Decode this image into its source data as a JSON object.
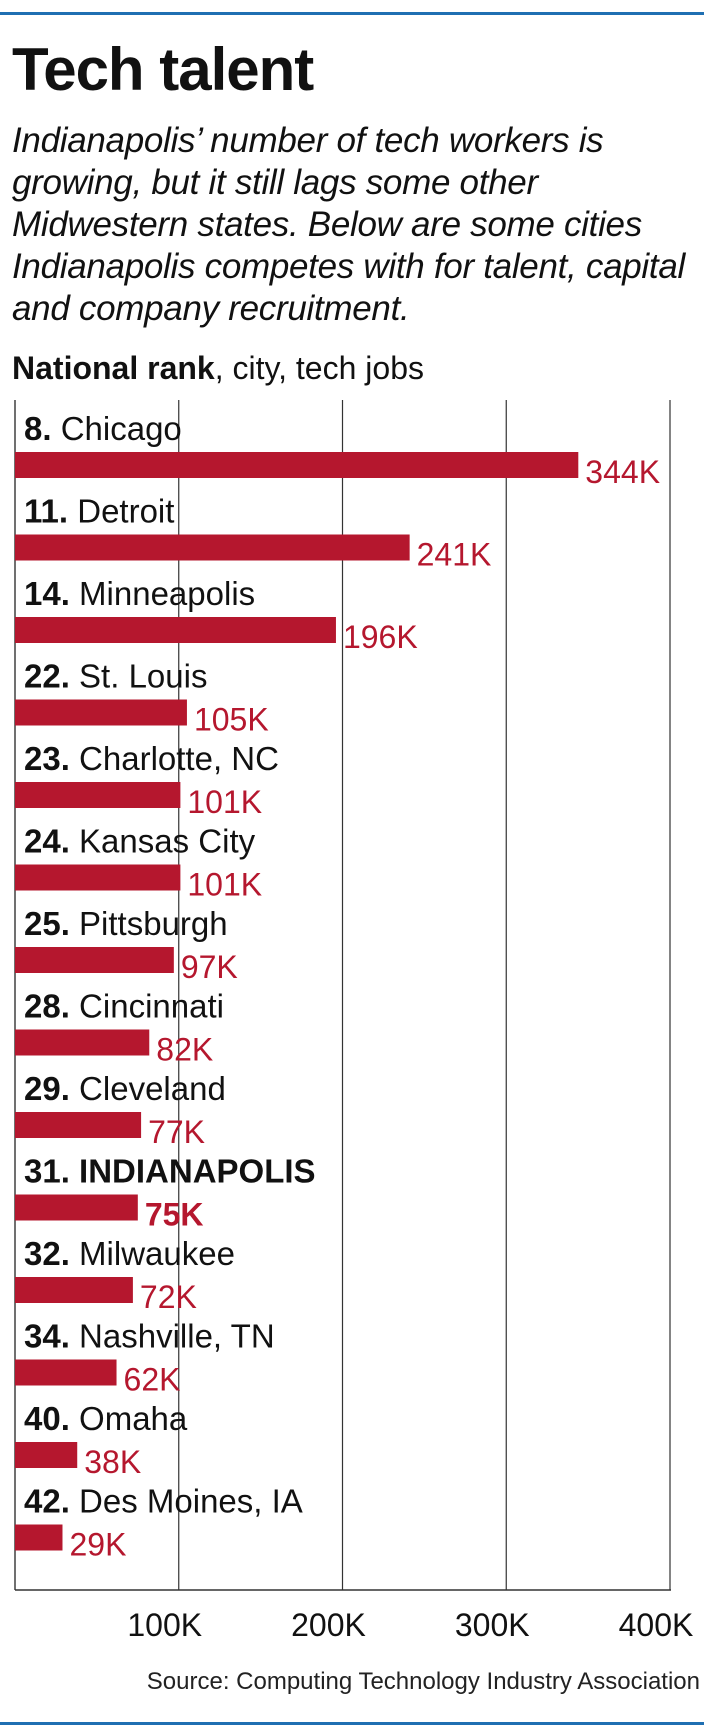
{
  "header": {
    "title": "Tech talent",
    "subtitle": "Indianapolis’ number of tech workers is growing, but it still lags some other Midwestern states. Below are some cities Indianapolis competes with for talent, capital and company recruitment.",
    "axis_title_bold": "National rank",
    "axis_title_rest": ", city, tech jobs"
  },
  "source": "Source: Computing Technology Industry Association",
  "colors": {
    "bar": "#b5172e",
    "rule": "#1f6fb2",
    "grid": "#333333"
  },
  "chart_data": {
    "type": "bar",
    "orientation": "horizontal",
    "xlim": [
      0,
      400000
    ],
    "ticks": [
      {
        "value": 100000,
        "label": "100K"
      },
      {
        "value": 200000,
        "label": "200K"
      },
      {
        "value": 300000,
        "label": "300K"
      },
      {
        "value": 400000,
        "label": "400K"
      }
    ],
    "grid": true,
    "rows": [
      {
        "rank": "8.",
        "city": "Chicago",
        "value": 344000,
        "label": "344K",
        "highlight": false
      },
      {
        "rank": "11.",
        "city": "Detroit",
        "value": 241000,
        "label": "241K",
        "highlight": false
      },
      {
        "rank": "14.",
        "city": "Minneapolis",
        "value": 196000,
        "label": "196K",
        "highlight": false
      },
      {
        "rank": "22.",
        "city": "St. Louis",
        "value": 105000,
        "label": "105K",
        "highlight": false
      },
      {
        "rank": "23.",
        "city": "Charlotte, NC",
        "value": 101000,
        "label": "101K",
        "highlight": false
      },
      {
        "rank": "24.",
        "city": "Kansas City",
        "value": 101000,
        "label": "101K",
        "highlight": false
      },
      {
        "rank": "25.",
        "city": "Pittsburgh",
        "value": 97000,
        "label": "97K",
        "highlight": false
      },
      {
        "rank": "28.",
        "city": "Cincinnati",
        "value": 82000,
        "label": "82K",
        "highlight": false
      },
      {
        "rank": "29.",
        "city": "Cleveland",
        "value": 77000,
        "label": "77K",
        "highlight": false
      },
      {
        "rank": "31.",
        "city": "INDIANAPOLIS",
        "value": 75000,
        "label": "75K",
        "highlight": true
      },
      {
        "rank": "32.",
        "city": "Milwaukee",
        "value": 72000,
        "label": "72K",
        "highlight": false
      },
      {
        "rank": "34.",
        "city": "Nashville, TN",
        "value": 62000,
        "label": "62K",
        "highlight": false
      },
      {
        "rank": "40.",
        "city": "Omaha",
        "value": 38000,
        "label": "38K",
        "highlight": false
      },
      {
        "rank": "42.",
        "city": "Des Moines, IA",
        "value": 29000,
        "label": "29K",
        "highlight": false
      }
    ]
  }
}
